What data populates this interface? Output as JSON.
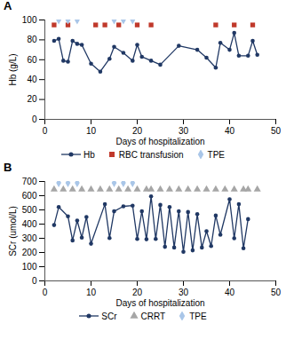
{
  "chart_data": [
    {
      "type": "line",
      "title": "A",
      "x_label": "Days of hospitalization",
      "y_label": "Hb (g/L)",
      "xlim": [
        0,
        50
      ],
      "xticks": [
        0,
        10,
        20,
        30,
        40,
        50
      ],
      "ylim": [
        0,
        100
      ],
      "yticks": [
        0,
        20,
        40,
        60,
        80,
        100
      ],
      "grid": false,
      "legend": "bottom",
      "series": [
        {
          "name": "Hb",
          "type": "line",
          "marker": "circle",
          "color": "#203864",
          "x": [
            2,
            3,
            4,
            5,
            6,
            7,
            8,
            10,
            12,
            14,
            15,
            17,
            19,
            20,
            21,
            23,
            25,
            29,
            33,
            35,
            37,
            38,
            40,
            41,
            42,
            44,
            45,
            46
          ],
          "values": [
            79,
            81,
            59,
            58,
            79,
            76,
            75,
            56,
            48,
            61,
            73,
            67,
            59,
            75,
            63,
            59,
            55,
            74,
            70,
            62,
            52,
            77,
            70,
            87,
            64,
            64,
            79,
            65
          ]
        },
        {
          "name": "RBC transfusion",
          "type": "scatter",
          "marker": "square",
          "color": "#c0392b",
          "x": [
            2,
            5,
            11,
            13,
            16,
            20,
            23,
            37,
            41,
            45
          ],
          "values": [
            95,
            95,
            95,
            95,
            95,
            95,
            95,
            95,
            95,
            95
          ]
        },
        {
          "name": "TPE",
          "type": "scatter",
          "marker": "diamond",
          "color": "#a9c6e8",
          "x": [
            3,
            5,
            7,
            15,
            17,
            19
          ],
          "values": [
            100,
            100,
            100,
            100,
            100,
            100
          ]
        }
      ]
    },
    {
      "type": "line",
      "title": "B",
      "x_label": "Days of hospitalization",
      "y_label": "SCr (umol/L)",
      "xlim": [
        0,
        50
      ],
      "xticks": [
        0,
        10,
        20,
        30,
        40,
        50
      ],
      "ylim": [
        0,
        700
      ],
      "yticks": [
        0,
        100,
        200,
        300,
        400,
        500,
        600,
        700
      ],
      "grid": false,
      "legend": "bottom",
      "series": [
        {
          "name": "SCr",
          "type": "line",
          "marker": "circle",
          "color": "#203864",
          "x": [
            2,
            3,
            5,
            6,
            7,
            8,
            9,
            10,
            13,
            14,
            15,
            17,
            19,
            20,
            21,
            22,
            23,
            24,
            25,
            26,
            27,
            28,
            29,
            30,
            31,
            32,
            33,
            34,
            35,
            36,
            37,
            38,
            40,
            41,
            42,
            43,
            44
          ],
          "values": [
            393,
            520,
            455,
            285,
            425,
            305,
            450,
            262,
            540,
            302,
            490,
            525,
            530,
            295,
            490,
            293,
            595,
            295,
            535,
            240,
            520,
            235,
            490,
            205,
            485,
            215,
            470,
            235,
            350,
            245,
            460,
            325,
            575,
            300,
            540,
            230,
            435
          ]
        },
        {
          "name": "CRRT",
          "type": "scatter",
          "marker": "triangle",
          "color": "#a6a6a6",
          "x": [
            2,
            4,
            6,
            8,
            10,
            12,
            14,
            16,
            18,
            20,
            22,
            23,
            25,
            27,
            29,
            31,
            33,
            35,
            37,
            39,
            41,
            43,
            44,
            46
          ],
          "values": [
            645,
            645,
            645,
            645,
            645,
            645,
            645,
            645,
            645,
            645,
            645,
            645,
            645,
            645,
            645,
            645,
            645,
            645,
            645,
            645,
            645,
            645,
            645,
            645
          ]
        },
        {
          "name": "TPE",
          "type": "scatter",
          "marker": "diamond",
          "color": "#a9c6e8",
          "x": [
            3,
            5,
            7,
            15,
            17,
            19
          ],
          "values": [
            690,
            690,
            690,
            690,
            690,
            690
          ]
        }
      ]
    }
  ]
}
